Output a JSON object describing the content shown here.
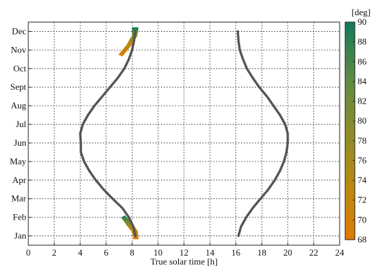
{
  "chart_data": {
    "type": "scatter",
    "xlabel": "True solar time [h]",
    "ylabel": "",
    "xlim": [
      0,
      24
    ],
    "x_ticks": [
      0,
      2,
      4,
      6,
      8,
      10,
      12,
      14,
      16,
      18,
      20,
      22,
      24
    ],
    "y_categories": [
      "Jan",
      "Feb",
      "Mar",
      "Apr",
      "May",
      "Jun",
      "Jul",
      "Aug",
      "Sept",
      "Oct",
      "Nov",
      "Dec"
    ],
    "grid": true,
    "colorbar": {
      "label": "[deg]",
      "min": 68,
      "max": 90,
      "ticks": [
        68,
        70,
        72,
        74,
        76,
        78,
        80,
        82,
        84,
        86,
        88,
        90
      ],
      "colors": [
        "#e07a00",
        "#b98a10",
        "#8c8c2a",
        "#5c8a45",
        "#0f7a5a"
      ]
    },
    "series": [
      {
        "color": "#555555",
        "points": [
          [
            8.25,
            1.0
          ],
          [
            8.1,
            1.5
          ],
          [
            7.75,
            2.0
          ],
          [
            7.25,
            2.5
          ],
          [
            6.5,
            3.0
          ],
          [
            5.8,
            3.5
          ],
          [
            5.2,
            4.0
          ],
          [
            4.7,
            4.5
          ],
          [
            4.3,
            5.0
          ],
          [
            4.05,
            5.5
          ],
          [
            4.05,
            6.0
          ],
          [
            4.0,
            6.5
          ],
          [
            4.2,
            7.0
          ],
          [
            4.6,
            7.5
          ],
          [
            5.1,
            8.0
          ],
          [
            5.7,
            8.5
          ],
          [
            6.3,
            9.0
          ],
          [
            6.9,
            9.5
          ],
          [
            7.4,
            10.0
          ],
          [
            7.75,
            10.5
          ],
          [
            8.0,
            11.0
          ],
          [
            8.15,
            11.5
          ],
          [
            8.25,
            12.0
          ]
        ]
      },
      {
        "color": "#555555",
        "points": [
          [
            16.2,
            1.0
          ],
          [
            16.4,
            1.5
          ],
          [
            16.8,
            2.0
          ],
          [
            17.3,
            2.5
          ],
          [
            17.9,
            3.0
          ],
          [
            18.5,
            3.5
          ],
          [
            19.0,
            4.0
          ],
          [
            19.4,
            4.5
          ],
          [
            19.7,
            5.0
          ],
          [
            19.9,
            5.5
          ],
          [
            20.0,
            6.0
          ],
          [
            20.0,
            6.5
          ],
          [
            19.8,
            7.0
          ],
          [
            19.4,
            7.5
          ],
          [
            18.9,
            8.0
          ],
          [
            18.4,
            8.5
          ],
          [
            17.8,
            9.0
          ],
          [
            17.3,
            9.5
          ],
          [
            16.85,
            10.0
          ],
          [
            16.55,
            10.5
          ],
          [
            16.3,
            11.0
          ],
          [
            16.2,
            11.5
          ],
          [
            16.15,
            12.0
          ]
        ]
      },
      {
        "color": "#2d7a4a",
        "points": [
          [
            7.3,
            1.9
          ],
          [
            7.5,
            1.7
          ],
          [
            7.7,
            1.5
          ],
          [
            7.9,
            1.3
          ],
          [
            8.05,
            1.1
          ],
          [
            8.15,
            0.95
          ],
          [
            7.1,
            10.9
          ],
          [
            7.35,
            11.1
          ],
          [
            7.6,
            11.35
          ],
          [
            7.8,
            11.6
          ],
          [
            8.0,
            11.85
          ],
          [
            8.15,
            12.1
          ]
        ]
      }
    ]
  }
}
